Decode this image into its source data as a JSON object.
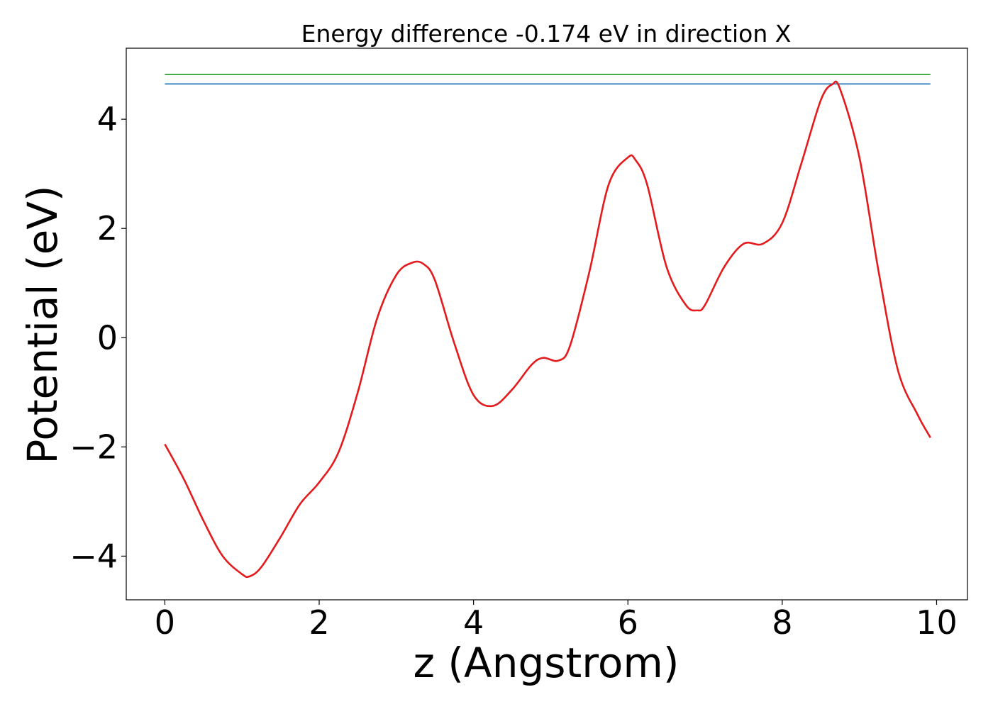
{
  "chart_data": {
    "type": "line",
    "title": "Energy difference -0.174 eV in direction X",
    "xlabel": "z (Angstrom)",
    "ylabel": "Potential (eV)",
    "xlim": [
      -0.5,
      10.4
    ],
    "ylim": [
      -4.8,
      5.3
    ],
    "xticks": [
      0,
      2,
      4,
      6,
      8,
      10
    ],
    "xtick_labels": [
      "0",
      "2",
      "4",
      "6",
      "8",
      "10"
    ],
    "yticks": [
      -4,
      -2,
      0,
      2,
      4
    ],
    "ytick_labels": [
      "−4",
      "−2",
      "0",
      "2",
      "4"
    ],
    "grid": false,
    "legend": "none",
    "series": [
      {
        "color": "#2ca02c",
        "x": [
          0,
          9.92
        ],
        "y": [
          4.82,
          4.82
        ]
      },
      {
        "color": "#1f77b4",
        "x": [
          0,
          9.92
        ],
        "y": [
          4.646,
          4.646
        ]
      },
      {
        "color": "#e41a1c",
        "x": [
          0,
          0.25,
          0.5,
          0.75,
          1.0,
          1.1,
          1.25,
          1.5,
          1.75,
          2.0,
          2.25,
          2.5,
          2.75,
          3.0,
          3.2,
          3.35,
          3.5,
          3.75,
          4.0,
          4.25,
          4.5,
          4.75,
          4.9,
          5.1,
          5.25,
          5.5,
          5.75,
          6.0,
          6.1,
          6.25,
          6.5,
          6.75,
          6.9,
          7.0,
          7.25,
          7.5,
          7.75,
          8.0,
          8.25,
          8.5,
          8.65,
          8.75,
          9.0,
          9.25,
          9.5,
          9.75,
          9.92
        ],
        "y": [
          -1.95,
          -2.6,
          -3.35,
          -4.0,
          -4.33,
          -4.37,
          -4.2,
          -3.65,
          -3.05,
          -2.65,
          -2.1,
          -1.0,
          0.35,
          1.15,
          1.37,
          1.35,
          1.05,
          -0.1,
          -1.05,
          -1.25,
          -0.95,
          -0.5,
          -0.37,
          -0.42,
          -0.15,
          1.2,
          2.8,
          3.3,
          3.25,
          2.8,
          1.3,
          0.6,
          0.5,
          0.6,
          1.3,
          1.72,
          1.72,
          2.1,
          3.2,
          4.35,
          4.64,
          4.55,
          3.3,
          1.2,
          -0.6,
          -1.4,
          -1.83
        ]
      }
    ]
  }
}
